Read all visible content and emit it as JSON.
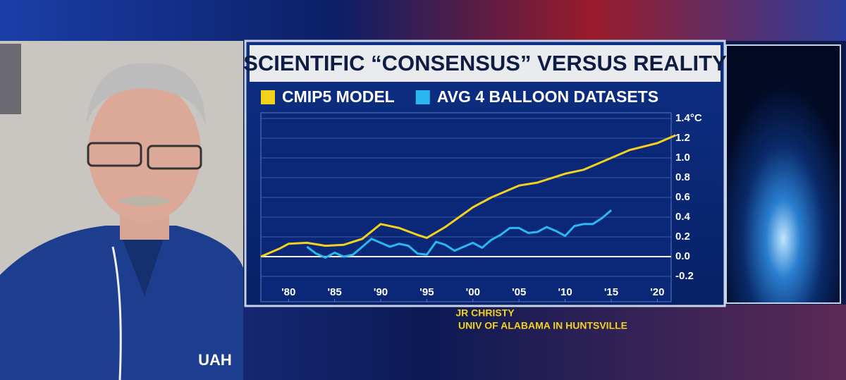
{
  "chart_data": {
    "type": "line",
    "title": "SCIENTIFIC “CONSENSUS” VERSUS REALITY",
    "series": [
      {
        "name": "CMIP5 MODEL",
        "color": "#f2d21b",
        "x": [
          1977,
          1979,
          1980,
          1982,
          1984,
          1986,
          1988,
          1990,
          1992,
          1994,
          1995,
          1997,
          2000,
          2002,
          2005,
          2007,
          2010,
          2012,
          2015,
          2017,
          2020,
          2022
        ],
        "values": [
          0.0,
          0.08,
          0.13,
          0.14,
          0.11,
          0.12,
          0.18,
          0.33,
          0.29,
          0.22,
          0.19,
          0.3,
          0.5,
          0.6,
          0.72,
          0.75,
          0.84,
          0.88,
          1.0,
          1.08,
          1.15,
          1.23
        ]
      },
      {
        "name": "AVG 4 BALLOON DATASETS",
        "color": "#2bb8f0",
        "x": [
          1982,
          1983,
          1984,
          1985,
          1986,
          1987,
          1988,
          1989,
          1991,
          1992,
          1993,
          1994,
          1995,
          1996,
          1997,
          1998,
          1999,
          2000,
          2001,
          2002,
          2003,
          2004,
          2005,
          2006,
          2007,
          2008,
          2009,
          2010,
          2011,
          2012,
          2013,
          2014,
          2015
        ],
        "values": [
          0.1,
          0.03,
          -0.01,
          0.04,
          0.0,
          0.02,
          0.1,
          0.18,
          0.1,
          0.13,
          0.11,
          0.03,
          0.02,
          0.15,
          0.12,
          0.06,
          0.1,
          0.14,
          0.09,
          0.17,
          0.22,
          0.29,
          0.29,
          0.24,
          0.25,
          0.3,
          0.26,
          0.21,
          0.31,
          0.33,
          0.33,
          0.39,
          0.47
        ]
      }
    ],
    "xlim": [
      1977,
      2021.5
    ],
    "xticks": [
      {
        "value": 1980,
        "label": "'80"
      },
      {
        "value": 1985,
        "label": "'85"
      },
      {
        "value": 1990,
        "label": "'90"
      },
      {
        "value": 1995,
        "label": "'95"
      },
      {
        "value": 2000,
        "label": "'00"
      },
      {
        "value": 2005,
        "label": "'05"
      },
      {
        "value": 2010,
        "label": "'10"
      },
      {
        "value": 2015,
        "label": "'15"
      },
      {
        "value": 2020,
        "label": "'20"
      }
    ],
    "ylim": [
      -0.457,
      1.457
    ],
    "yticks": [
      -0.2,
      {
        "value": 0.0,
        "label": "0.0"
      },
      0.2,
      0.4,
      0.6,
      0.8,
      {
        "value": 1.0,
        "label": "1.0"
      },
      1.2,
      {
        "value": 1.4,
        "label": "1.4°C"
      }
    ],
    "grid": true
  },
  "caption": {
    "name": "JR CHRISTY",
    "affiliation": "UNIV OF ALABAMA IN HUNTSVILLE"
  },
  "logo": "UAH"
}
